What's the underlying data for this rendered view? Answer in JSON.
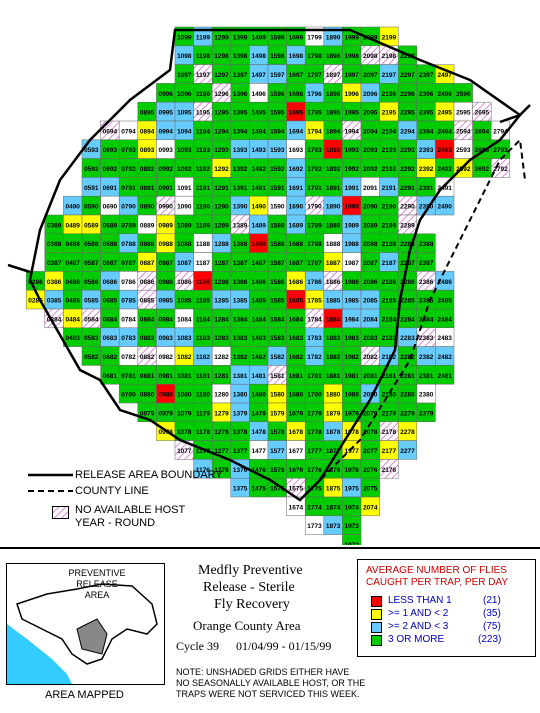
{
  "colors": {
    "less_than_1": "#ff0000",
    "ge1_lt2": "#ffff00",
    "ge2_lt3": "#66ccff",
    "three_or_more": "#00cc00",
    "unshaded": "#ffffff",
    "no_host_hatch": "#cc66cc",
    "ocean": "#33ccff",
    "area_mapped": "#888888"
  },
  "map": {
    "grid_rows": [
      {
        "ids": [
          "1099",
          "1199",
          "1299",
          "1399",
          "1499",
          "1599",
          "1699",
          "1799",
          "1899",
          "1999",
          "2099",
          "2199"
        ]
      },
      {
        "ids": [
          "1098",
          "1198",
          "1298",
          "1398",
          "1498",
          "1598",
          "1698",
          "1798",
          "1898",
          "1998",
          "2098",
          "2198",
          "2298"
        ]
      },
      {
        "ids": [
          "1097",
          "1197",
          "1297",
          "1397",
          "1497",
          "1597",
          "1697",
          "1797",
          "1897",
          "1997",
          "2097",
          "2197",
          "2297",
          "2397",
          "2497"
        ]
      },
      {
        "ids": [
          "0996",
          "1096",
          "1196",
          "1296",
          "1396",
          "1496",
          "1596",
          "1696",
          "1796",
          "1896",
          "1996",
          "2096",
          "2196",
          "2296",
          "2396",
          "2496",
          "2596"
        ]
      },
      {
        "ids": [
          "0895",
          "0995",
          "1095",
          "1195",
          "1295",
          "1395",
          "1495",
          "1595",
          "1695",
          "1795",
          "1895",
          "1995",
          "2095",
          "2195",
          "2295",
          "2395",
          "2495",
          "2595",
          "2695"
        ]
      },
      {
        "ids": [
          "0694",
          "0794",
          "0894",
          "0994",
          "1094",
          "1194",
          "1294",
          "1394",
          "1494",
          "1594",
          "1694",
          "1794",
          "1894",
          "1994",
          "2094",
          "2194",
          "2294",
          "2394",
          "2494",
          "2594",
          "2694",
          "2794"
        ]
      },
      {
        "ids": [
          "0593",
          "0693",
          "0793",
          "0893",
          "0993",
          "1093",
          "1193",
          "1293",
          "1393",
          "1493",
          "1593",
          "1693",
          "1793",
          "1893",
          "1993",
          "2093",
          "2193",
          "2293",
          "2393",
          "2493",
          "2593",
          "2693",
          "2793"
        ]
      },
      {
        "ids": [
          "0592",
          "0692",
          "0792",
          "0892",
          "0992",
          "1092",
          "1192",
          "1292",
          "1392",
          "1492",
          "1592",
          "1692",
          "1792",
          "1892",
          "1992",
          "2092",
          "2192",
          "2292",
          "2392",
          "2492",
          "2592",
          "2692",
          "2792"
        ]
      },
      {
        "ids": [
          "0591",
          "0691",
          "0791",
          "0891",
          "0991",
          "1091",
          "1191",
          "1291",
          "1391",
          "1491",
          "1591",
          "1691",
          "1791",
          "1891",
          "1991",
          "2091",
          "2191",
          "2291",
          "2391",
          "2491"
        ]
      },
      {
        "ids": [
          "0490",
          "0590",
          "0690",
          "0790",
          "0890",
          "0990",
          "1090",
          "1190",
          "1290",
          "1390",
          "1490",
          "1590",
          "1690",
          "1790",
          "1890",
          "1990",
          "2090",
          "2190",
          "2290",
          "2390",
          "2490"
        ]
      },
      {
        "ids": [
          "0389",
          "0489",
          "0589",
          "0689",
          "0789",
          "0889",
          "0989",
          "1089",
          "1189",
          "1289",
          "1389",
          "1489",
          "1589",
          "1689",
          "1789",
          "1889",
          "1989",
          "2089",
          "2189",
          "2289"
        ]
      },
      {
        "ids": [
          "0388",
          "0488",
          "0588",
          "0688",
          "0788",
          "0888",
          "0988",
          "1088",
          "1188",
          "1288",
          "1388",
          "1488",
          "1588",
          "1688",
          "1788",
          "1888",
          "1988",
          "2088",
          "2188",
          "2288",
          "2388"
        ]
      },
      {
        "ids": [
          "0387",
          "0487",
          "0587",
          "0687",
          "0787",
          "0887",
          "0987",
          "1087",
          "1187",
          "1287",
          "1387",
          "1487",
          "1587",
          "1687",
          "1787",
          "1887",
          "1987",
          "2087",
          "2187",
          "2287",
          "2387"
        ]
      },
      {
        "ids": [
          "0286",
          "0386",
          "0486",
          "0586",
          "0686",
          "0786",
          "0886",
          "0986",
          "1086",
          "1186",
          "1286",
          "1386",
          "1486",
          "1586",
          "1686",
          "1786",
          "1886",
          "1986",
          "2086",
          "2186",
          "2286",
          "2386",
          "2486"
        ]
      },
      {
        "ids": [
          "0285",
          "0385",
          "0485",
          "0585",
          "0685",
          "0785",
          "0885",
          "0985",
          "1085",
          "1185",
          "1285",
          "1385",
          "1485",
          "1585",
          "1685",
          "1785",
          "1885",
          "1985",
          "2085",
          "2185",
          "2285",
          "2385",
          "2485"
        ]
      },
      {
        "ids": [
          "0384",
          "0484",
          "0584",
          "0684",
          "0784",
          "0884",
          "0984",
          "1084",
          "1184",
          "1284",
          "1384",
          "1484",
          "1584",
          "1684",
          "1784",
          "1884",
          "1984",
          "2084",
          "2184",
          "2284",
          "2384",
          "2484"
        ]
      },
      {
        "ids": [
          "0483",
          "0583",
          "0683",
          "0783",
          "0883",
          "0983",
          "1083",
          "1183",
          "1283",
          "1383",
          "1483",
          "1583",
          "1683",
          "1783",
          "1883",
          "1983",
          "2083",
          "2183",
          "2283",
          "2383",
          "2483"
        ]
      },
      {
        "ids": [
          "0582",
          "0682",
          "0782",
          "0882",
          "0982",
          "1082",
          "1182",
          "1282",
          "1382",
          "1482",
          "1582",
          "1682",
          "1782",
          "1882",
          "1982",
          "2082",
          "2182",
          "2282",
          "2382",
          "2482"
        ]
      },
      {
        "ids": [
          "0681",
          "0781",
          "0881",
          "0981",
          "1081",
          "1181",
          "1281",
          "1381",
          "1481",
          "1581",
          "1681",
          "1781",
          "1881",
          "1981",
          "2081",
          "2181",
          "2281",
          "2381",
          "2481"
        ]
      },
      {
        "ids": [
          "0780",
          "0880",
          "0980",
          "1080",
          "1180",
          "1280",
          "1380",
          "1480",
          "1580",
          "1680",
          "1780",
          "1880",
          "1980",
          "2080",
          "2180",
          "2280",
          "2380"
        ]
      },
      {
        "ids": [
          "0879",
          "0979",
          "1079",
          "1179",
          "1279",
          "1379",
          "1479",
          "1579",
          "1679",
          "1779",
          "1879",
          "1979",
          "2079",
          "2179",
          "2279",
          "2379"
        ]
      },
      {
        "ids": [
          "0978",
          "1078",
          "1178",
          "1278",
          "1378",
          "1478",
          "1578",
          "1678",
          "1778",
          "1878",
          "1978",
          "2078",
          "2178",
          "2278"
        ]
      },
      {
        "ids": [
          "1077",
          "1177",
          "1277",
          "1377",
          "1477",
          "1577",
          "1677",
          "1777",
          "1877",
          "1977",
          "2077",
          "2177",
          "2277"
        ]
      },
      {
        "ids": [
          "1176",
          "1276",
          "1376",
          "1476",
          "1576",
          "1676",
          "1776",
          "1876",
          "1976",
          "2076",
          "2176"
        ]
      },
      {
        "ids": [
          "1375",
          "1475",
          "1575",
          "1675",
          "1775",
          "1875",
          "1975",
          "2075"
        ]
      },
      {
        "ids": [
          "1674",
          "1774",
          "1874",
          "1974",
          "2074"
        ]
      },
      {
        "ids": [
          "1773",
          "1873",
          "1973"
        ]
      },
      {
        "ids": [
          "1972"
        ]
      }
    ],
    "legend": {
      "boundary_label": "RELEASE AREA BOUNDARY",
      "county_label": "COUNTY LINE",
      "no_host_line1": "NO AVAILABLE HOST",
      "no_host_line2": "YEAR - ROUND"
    }
  },
  "inset": {
    "label": "PREVENTIVE RELEASE AREA",
    "caption": "AREA MAPPED"
  },
  "title": {
    "line1": "Medfly Preventive",
    "line2": "Release - Sterile",
    "line3": "Fly Recovery",
    "line4": "Orange County Area",
    "cycle": "Cycle 39",
    "dates": "01/04/99 - 01/15/99"
  },
  "key": {
    "heading1": "AVERAGE NUMBER OF FLIES",
    "heading2": "CAUGHT PER TRAP, PER DAY",
    "items": [
      {
        "label": "LESS THAN 1",
        "count": "(21)"
      },
      {
        "label": ">= 1 AND < 2",
        "count": "(35)"
      },
      {
        "label": ">= 2 AND < 3",
        "count": "(75)"
      },
      {
        "label": "3 OR MORE",
        "count": "(223)"
      }
    ]
  },
  "note": {
    "line1": "NOTE: UNSHADED GRIDS EITHER HAVE",
    "line2": "NO SEASONALLY AVAILABLE HOST, OR THE",
    "line3": "TRAPS WERE NOT SERVICED THIS WEEK."
  }
}
